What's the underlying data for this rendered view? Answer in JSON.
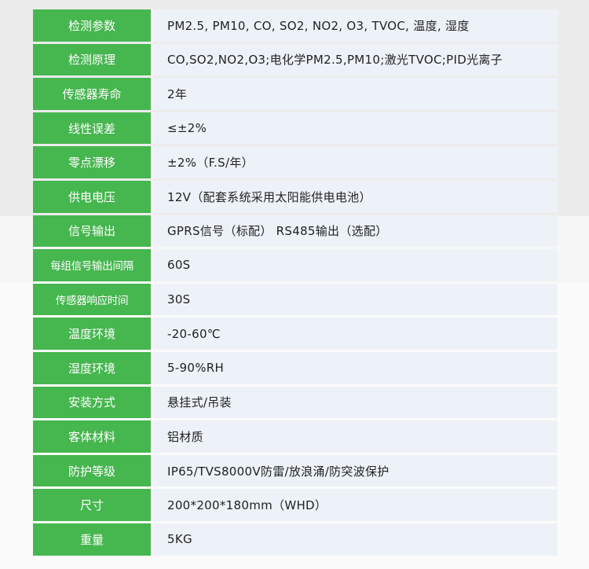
{
  "table": {
    "rows": [
      [
        "检测参数",
        "PM2.5, PM10, CO, SO2, NO2, O3, TVOC, 温度, 湿度"
      ],
      [
        "检测原理",
        "CO,SO2,NO2,O3;电化学PM2.5,PM10;激光TVOC;PID光离子"
      ],
      [
        "传感器寿命",
        "2年"
      ],
      [
        "线性误差",
        "≤±2%"
      ],
      [
        "零点漂移",
        "±2%（F.S/年）"
      ],
      [
        "供电电压",
        "12V（配套系统采用太阳能供电电池）"
      ],
      [
        "信号输出",
        "GPRS信号（标配） RS485输出（选配）"
      ],
      [
        "每组信号输出间隔",
        "60S"
      ],
      [
        "传感器响应时间",
        "30S"
      ],
      [
        "温度环境",
        "-20-60℃"
      ],
      [
        "湿度环境",
        "5-90%RH"
      ],
      [
        "安装方式",
        "悬挂式/吊装"
      ],
      [
        "客体材料",
        "铝材质"
      ],
      [
        "防护等级",
        "IP65/TVS8000V防雷/放浪涌/防突波保护"
      ],
      [
        "尺寸",
        "200*200*180mm（WHD）"
      ],
      [
        "重量",
        "5KG"
      ]
    ]
  }
}
